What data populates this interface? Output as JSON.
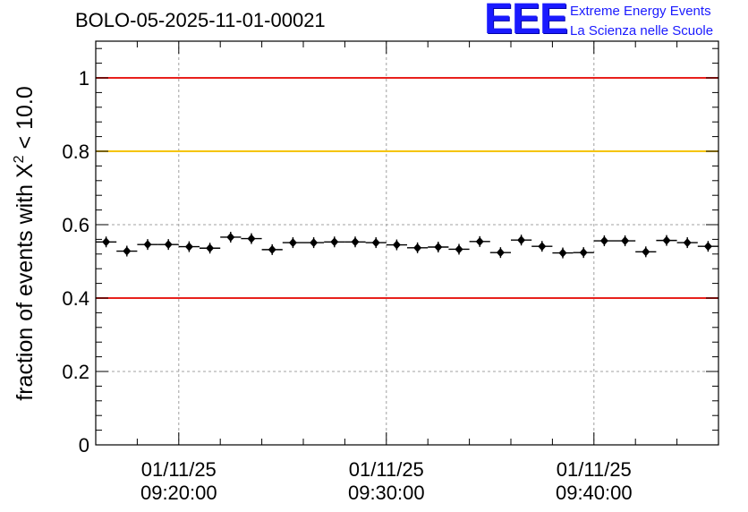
{
  "title": "BOLO-05-2025-11-01-00021",
  "logo": {
    "mark": "EEE",
    "line1": "Extreme Energy Events",
    "line2": "La Scienza nelle Scuole"
  },
  "colors": {
    "upper_threshold": "#e8201c",
    "warning_threshold": "#f5c400",
    "lower_threshold": "#e8201c",
    "points": "#000000",
    "grid": "#a0a0a0",
    "logo": "#1a1aff"
  },
  "chart_data": {
    "type": "scatter",
    "title": "BOLO-05-2025-11-01-00021",
    "ylabel": "fraction of events with X",
    "ylabel_superscript": "2",
    "ylabel_suffix": " < 10.0",
    "xlabel": "",
    "ylim": [
      0,
      1.1
    ],
    "xlim": [
      "2025-11-01T09:16:00",
      "2025-11-01T09:46:00"
    ],
    "grid": true,
    "y_ticks": [
      {
        "value": 0,
        "label": "0"
      },
      {
        "value": 0.2,
        "label": "0.2"
      },
      {
        "value": 0.4,
        "label": "0.4"
      },
      {
        "value": 0.6,
        "label": "0.6"
      },
      {
        "value": 0.8,
        "label": "0.8"
      },
      {
        "value": 1,
        "label": "1"
      }
    ],
    "x_ticks": [
      {
        "value": "2025-11-01T09:20:00",
        "line1": "01/11/25",
        "line2": "09:20:00"
      },
      {
        "value": "2025-11-01T09:30:00",
        "line1": "01/11/25",
        "line2": "09:30:00"
      },
      {
        "value": "2025-11-01T09:40:00",
        "line1": "01/11/25",
        "line2": "09:40:00"
      }
    ],
    "thresholds": [
      {
        "y": 1.0,
        "color": "#e8201c"
      },
      {
        "y": 0.8,
        "color": "#f5c400"
      },
      {
        "y": 0.4,
        "color": "#e8201c"
      }
    ],
    "series": [
      {
        "x": [
          "2025-11-01T09:16:30",
          "2025-11-01T09:17:30",
          "2025-11-01T09:18:30",
          "2025-11-01T09:19:30",
          "2025-11-01T09:20:30",
          "2025-11-01T09:21:30",
          "2025-11-01T09:22:30",
          "2025-11-01T09:23:30",
          "2025-11-01T09:24:30",
          "2025-11-01T09:25:30",
          "2025-11-01T09:26:30",
          "2025-11-01T09:27:30",
          "2025-11-01T09:28:30",
          "2025-11-01T09:29:30",
          "2025-11-01T09:30:30",
          "2025-11-01T09:31:30",
          "2025-11-01T09:32:30",
          "2025-11-01T09:33:30",
          "2025-11-01T09:34:30",
          "2025-11-01T09:35:30",
          "2025-11-01T09:36:30",
          "2025-11-01T09:37:30",
          "2025-11-01T09:38:30",
          "2025-11-01T09:39:30",
          "2025-11-01T09:40:30",
          "2025-11-01T09:41:30",
          "2025-11-01T09:42:30",
          "2025-11-01T09:43:30",
          "2025-11-01T09:44:30",
          "2025-11-01T09:45:30"
        ],
        "values": [
          0.553,
          0.528,
          0.546,
          0.546,
          0.54,
          0.536,
          0.566,
          0.562,
          0.532,
          0.551,
          0.551,
          0.553,
          0.553,
          0.551,
          0.545,
          0.537,
          0.539,
          0.533,
          0.554,
          0.524,
          0.558,
          0.541,
          0.523,
          0.524,
          0.556,
          0.556,
          0.526,
          0.557,
          0.551,
          0.541
        ]
      }
    ]
  }
}
